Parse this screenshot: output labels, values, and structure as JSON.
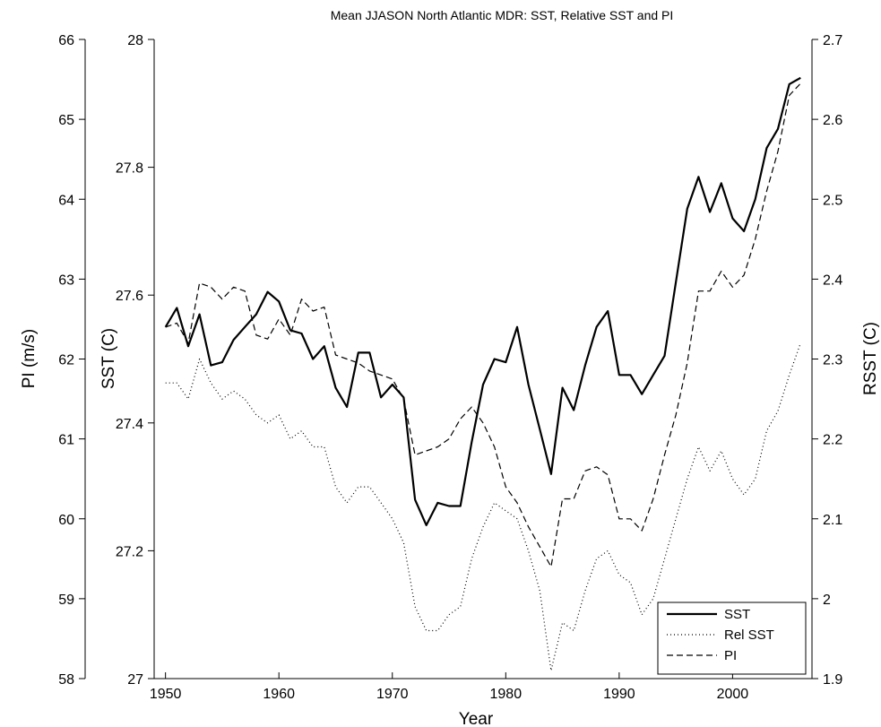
{
  "chart_data": {
    "type": "line",
    "title": "Mean JJASON North Atlantic MDR: SST, Relative SST and PI",
    "xlabel": "Year",
    "xlim": [
      1949,
      2007
    ],
    "xticks": [
      "1950",
      "1960",
      "1970",
      "1980",
      "1990",
      "2000"
    ],
    "axes": {
      "sst": {
        "label": "SST (C)",
        "ylim": [
          27,
          28
        ],
        "ticks": [
          "27",
          "27.2",
          "27.4",
          "27.6",
          "27.8",
          "28"
        ]
      },
      "pi": {
        "label": "PI (m/s)",
        "ylim": [
          58,
          66
        ],
        "ticks": [
          "58",
          "59",
          "60",
          "61",
          "62",
          "63",
          "64",
          "65",
          "66"
        ]
      },
      "rsst": {
        "label": "RSST (C)",
        "ylim": [
          1.9,
          2.7
        ],
        "ticks": [
          "1.9",
          "2",
          "2.1",
          "2.2",
          "2.3",
          "2.4",
          "2.5",
          "2.6",
          "2.7"
        ]
      }
    },
    "x": [
      1950,
      1951,
      1952,
      1953,
      1954,
      1955,
      1956,
      1957,
      1958,
      1959,
      1960,
      1961,
      1962,
      1963,
      1964,
      1965,
      1966,
      1967,
      1968,
      1969,
      1970,
      1971,
      1972,
      1973,
      1974,
      1975,
      1976,
      1977,
      1978,
      1979,
      1980,
      1981,
      1982,
      1983,
      1984,
      1985,
      1986,
      1987,
      1988,
      1989,
      1990,
      1991,
      1992,
      1993,
      1994,
      1995,
      1996,
      1997,
      1998,
      1999,
      2000,
      2001,
      2002,
      2003,
      2004,
      2005,
      2006
    ],
    "series": [
      {
        "name": "SST",
        "axis": "sst",
        "style": "solid",
        "color": "#000000",
        "values": [
          27.55,
          27.58,
          27.52,
          27.57,
          27.49,
          27.495,
          27.53,
          27.55,
          27.57,
          27.605,
          27.59,
          27.545,
          27.54,
          27.5,
          27.52,
          27.455,
          27.425,
          27.51,
          27.51,
          27.44,
          27.46,
          27.44,
          27.28,
          27.24,
          27.275,
          27.27,
          27.27,
          27.37,
          27.46,
          27.5,
          27.495,
          27.55,
          27.46,
          27.39,
          27.32,
          27.455,
          27.42,
          27.49,
          27.55,
          27.575,
          27.475,
          27.475,
          27.445,
          27.475,
          27.505,
          27.62,
          27.735,
          27.785,
          27.73,
          27.775,
          27.72,
          27.7,
          27.75,
          27.83,
          27.86,
          27.93,
          27.94
        ]
      },
      {
        "name": "Rel SST",
        "axis": "rsst",
        "style": "dotted",
        "color": "#000000",
        "values": [
          2.27,
          2.27,
          2.25,
          2.3,
          2.27,
          2.25,
          2.26,
          2.25,
          2.23,
          2.22,
          2.23,
          2.2,
          2.21,
          2.19,
          2.19,
          2.14,
          2.12,
          2.14,
          2.14,
          2.12,
          2.1,
          2.07,
          1.99,
          1.96,
          1.96,
          1.98,
          1.99,
          2.05,
          2.09,
          2.12,
          2.11,
          2.1,
          2.06,
          2.01,
          1.91,
          1.97,
          1.96,
          2.01,
          2.05,
          2.06,
          2.03,
          2.02,
          1.98,
          2.0,
          2.05,
          2.1,
          2.15,
          2.19,
          2.16,
          2.185,
          2.15,
          2.13,
          2.15,
          2.21,
          2.235,
          2.28,
          2.32
        ]
      },
      {
        "name": "PI",
        "axis": "pi",
        "style": "dashed",
        "color": "#000000",
        "values": [
          62.4,
          62.45,
          62.2,
          62.95,
          62.9,
          62.75,
          62.9,
          62.85,
          62.3,
          62.25,
          62.5,
          62.3,
          62.75,
          62.6,
          62.65,
          62.05,
          62.0,
          61.95,
          61.85,
          61.8,
          61.75,
          61.5,
          60.8,
          60.85,
          60.9,
          61.0,
          61.25,
          61.4,
          61.2,
          60.9,
          60.4,
          60.2,
          59.9,
          59.65,
          59.4,
          60.25,
          60.25,
          60.6,
          60.65,
          60.55,
          60.0,
          60.0,
          59.85,
          60.25,
          60.8,
          61.3,
          61.95,
          62.85,
          62.85,
          63.1,
          62.9,
          63.05,
          63.5,
          64.1,
          64.6,
          65.3,
          65.45
        ]
      }
    ],
    "legend": {
      "position": "bottom-right",
      "entries": [
        "SST",
        "Rel SST",
        "PI"
      ]
    },
    "grid": false
  }
}
